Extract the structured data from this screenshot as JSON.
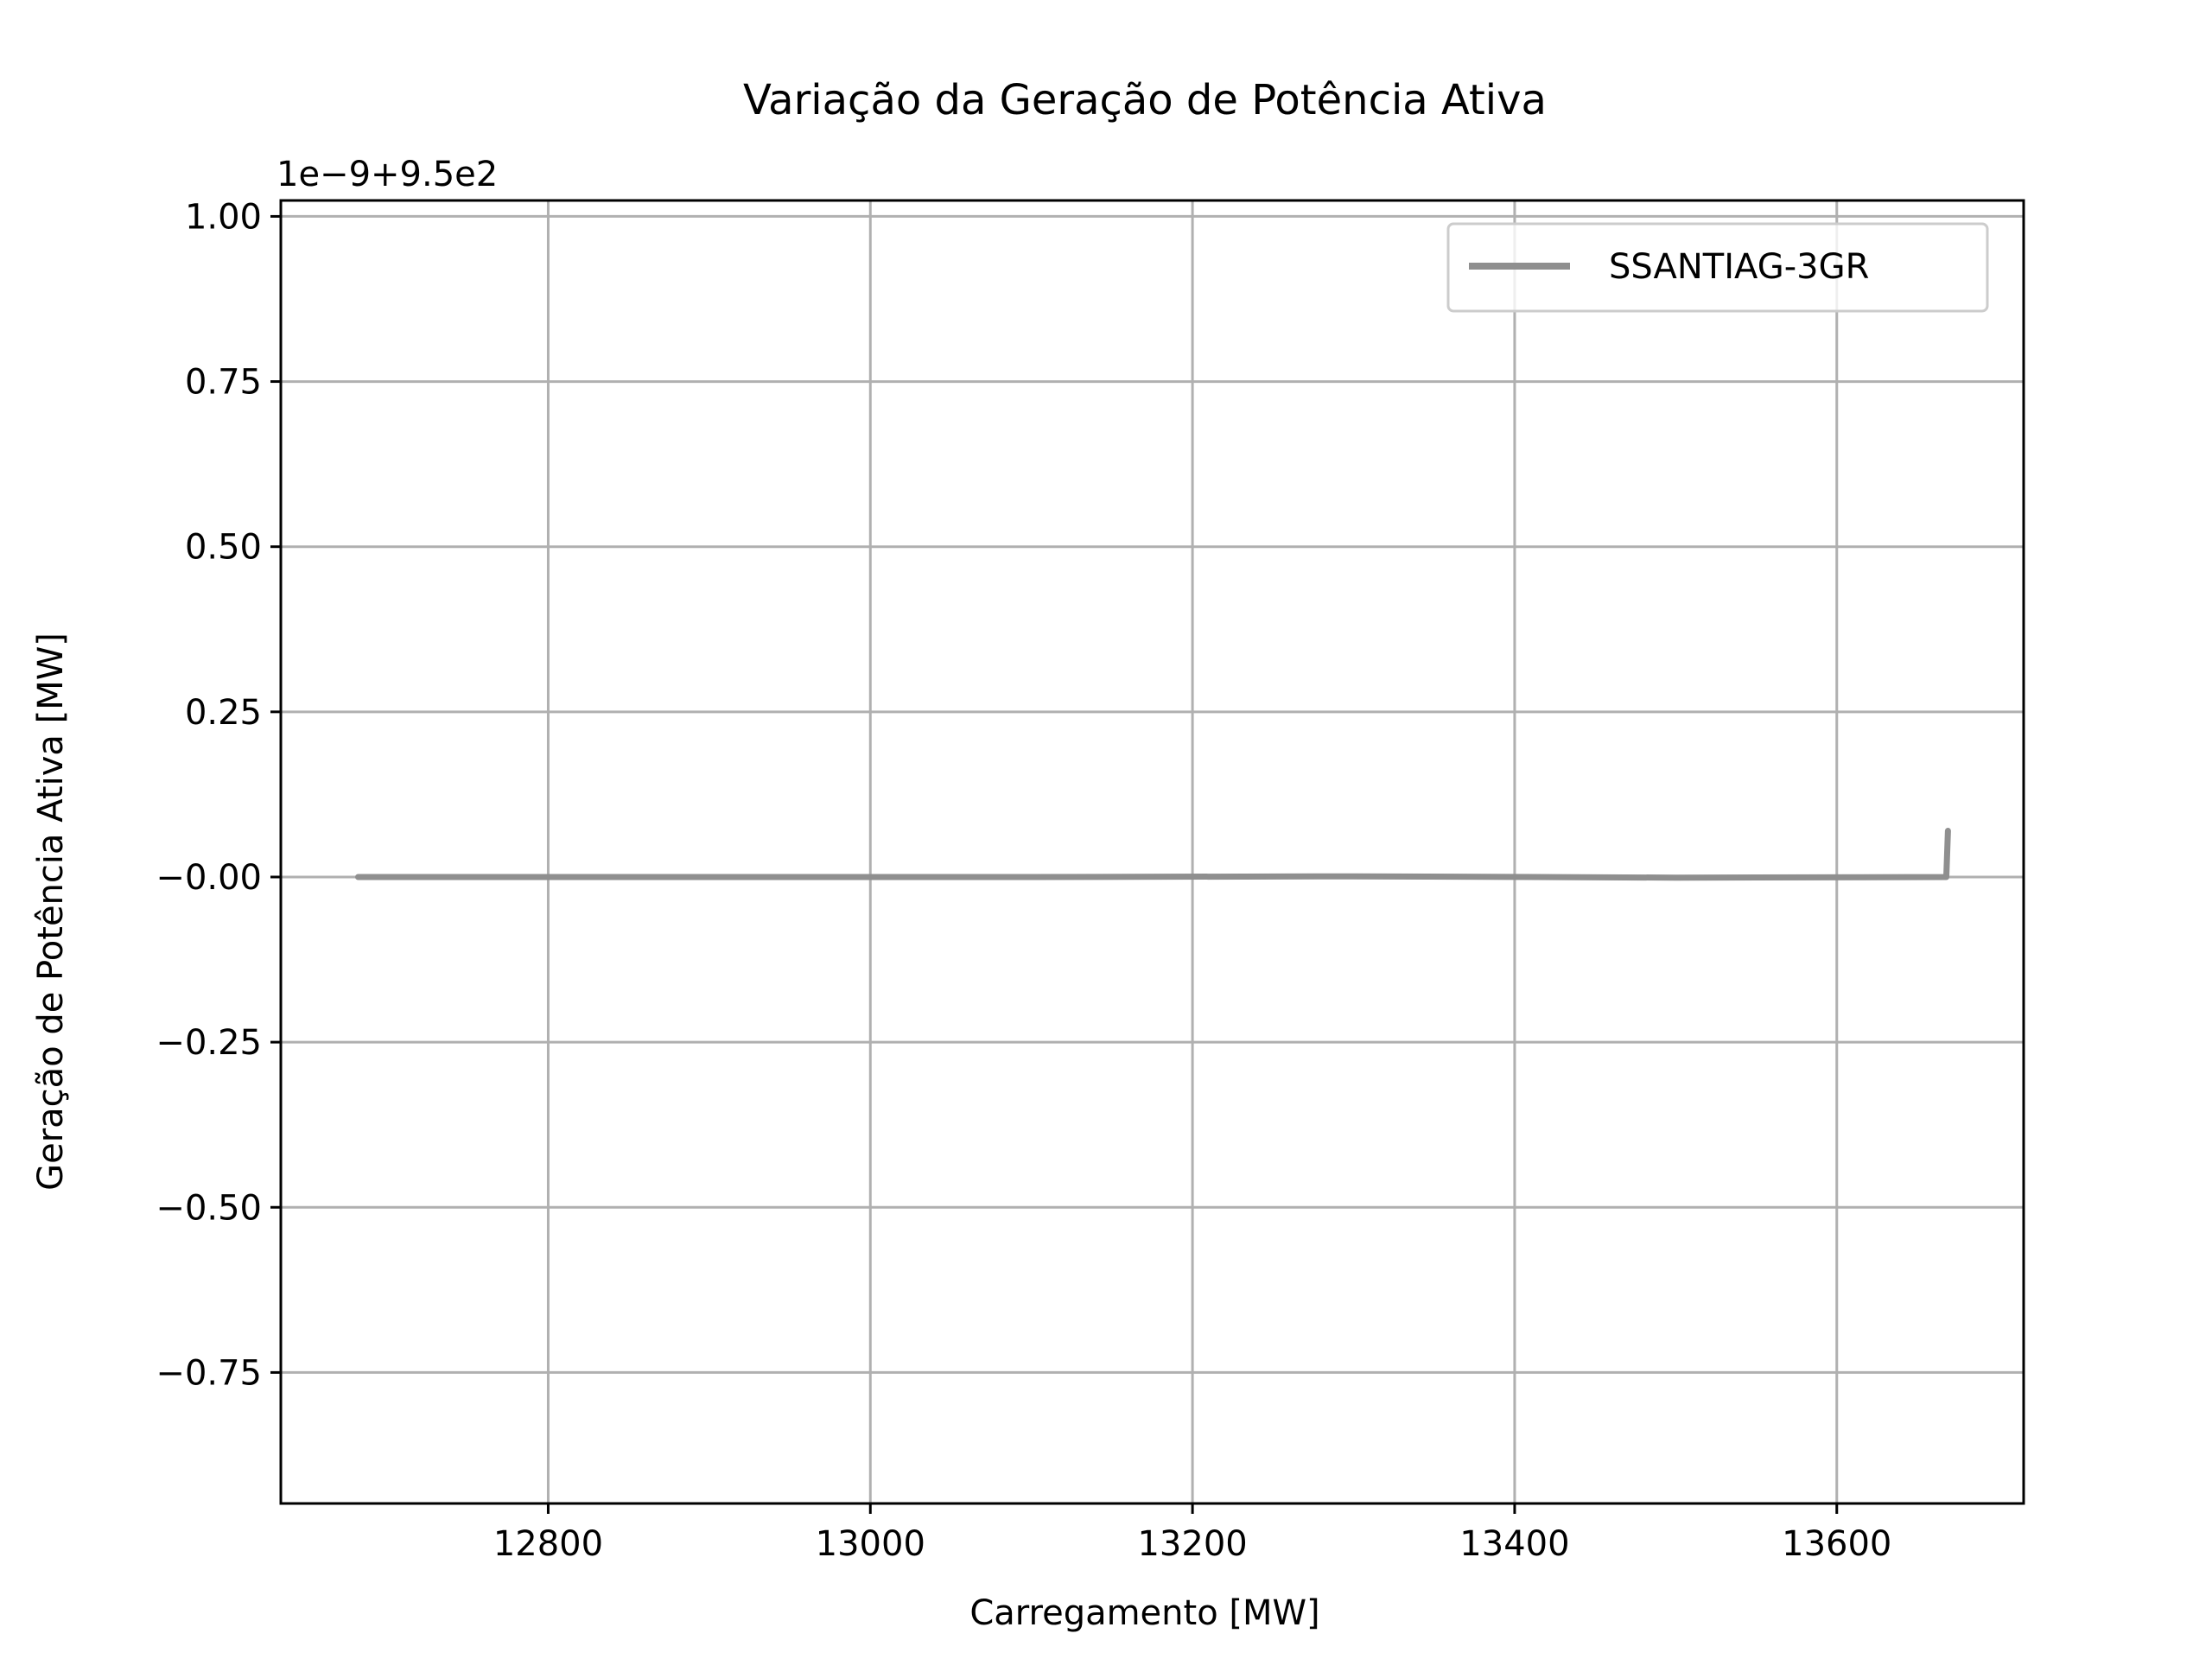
{
  "chart_data": {
    "type": "line",
    "title": "Variação da Geração de Potência Ativa",
    "xlabel": "Carregamento [MW]",
    "ylabel": "Geração de Potência Ativa [MW]",
    "offset_text": "1e−9+9.5e2",
    "xlim": [
      12634,
      13716
    ],
    "ylim": [
      -0.9483,
      1.0241
    ],
    "xticks": [
      12800,
      13000,
      13200,
      13400,
      13600
    ],
    "xtick_labels": [
      "12800",
      "13000",
      "13200",
      "13400",
      "13600"
    ],
    "yticks": [
      1.0,
      0.75,
      0.5,
      0.25,
      0.0,
      -0.25,
      -0.5,
      -0.75
    ],
    "ytick_labels": [
      "1.00",
      "0.75",
      "0.50",
      "0.25",
      "−0.00",
      "−0.25",
      "−0.50",
      "−0.75"
    ],
    "grid": true,
    "legend_position": "top-right",
    "series": [
      {
        "name": "SSANTIAG-3GR",
        "color": "#8f8f8f",
        "x": [
          12682,
          12900,
          13100,
          13300,
          13500,
          13668,
          13668,
          13669
        ],
        "y": [
          0.0,
          0.0,
          0.0,
          0.001,
          -0.001,
          0.0,
          0.0,
          0.07
        ]
      }
    ],
    "colors": {
      "axes": "#000000",
      "grid": "#b0b0b0",
      "legend_border": "#cccccc"
    }
  }
}
